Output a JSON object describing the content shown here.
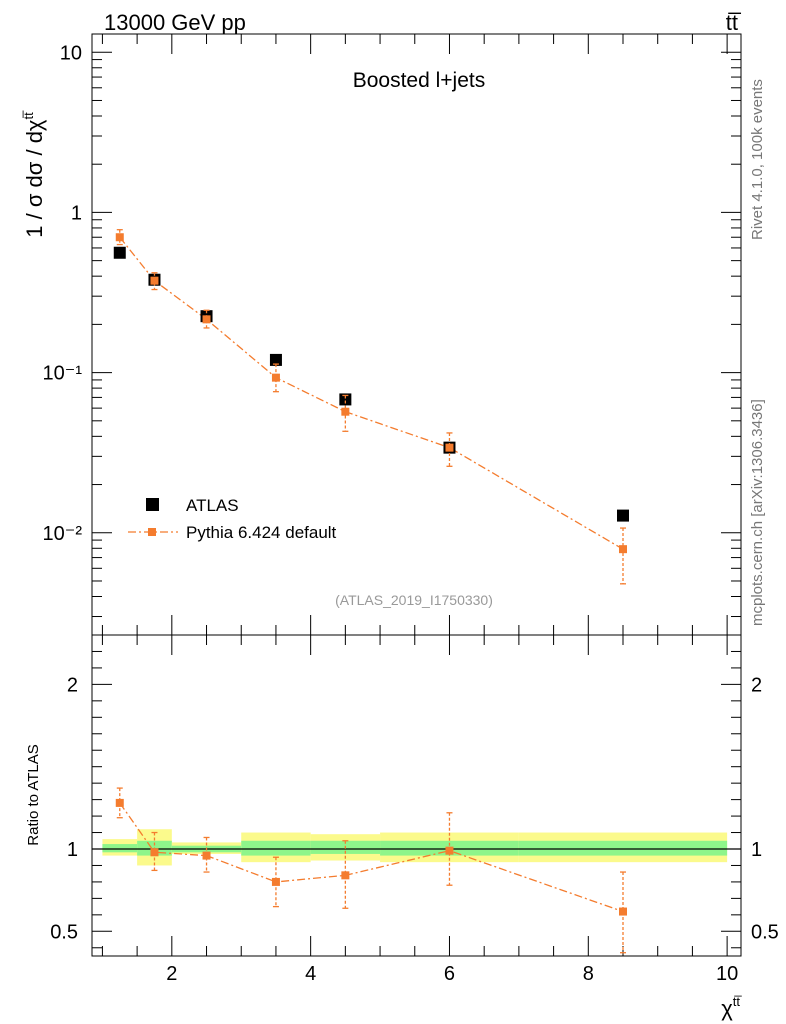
{
  "header": {
    "energy_label": "13000 GeV pp",
    "process_label": "tt̅"
  },
  "side_text": {
    "rivet_label": "Rivet 4.1.0,  100k events",
    "source_label": "mcplots.cern.ch [arXiv:1306.3436]"
  },
  "chart_data": [
    {
      "type": "scatter",
      "panel": "main",
      "title": "Boosted l+jets",
      "analysis_label": "(ATLAS_2019_I1750330)",
      "ylabel": "1 / σ dσ / dχ",
      "ylabel_superscript": "tt̅",
      "yscale": "log",
      "xlim": [
        0.85,
        10.2
      ],
      "ylim": [
        0.0023,
        13
      ],
      "ytick_labels": [
        "10⁻²",
        "10⁻¹",
        "1",
        "10"
      ],
      "legend_position": "lower-left",
      "series": [
        {
          "name": "ATLAS",
          "color": "#000000",
          "marker": "square",
          "x": [
            1.25,
            1.75,
            2.5,
            3.5,
            4.5,
            6.0,
            8.5
          ],
          "y": [
            0.56,
            0.38,
            0.225,
            0.12,
            0.068,
            0.034,
            0.0128
          ]
        },
        {
          "name": "Pythia 6.424 default",
          "color": "#f47c2e",
          "marker": "square-small",
          "line": "dash-dot",
          "x": [
            1.25,
            1.75,
            2.5,
            3.5,
            4.5,
            6.0,
            8.5
          ],
          "y": [
            0.7,
            0.375,
            0.215,
            0.093,
            0.057,
            0.034,
            0.0079
          ],
          "y_low": [
            0.63,
            0.33,
            0.19,
            0.076,
            0.043,
            0.026,
            0.0048
          ],
          "y_high": [
            0.78,
            0.42,
            0.245,
            0.113,
            0.072,
            0.042,
            0.0107
          ]
        }
      ]
    },
    {
      "type": "scatter",
      "panel": "ratio",
      "ylabel": "Ratio to ATLAS",
      "xlabel": "χ",
      "xlabel_superscript": "tt̅",
      "xlim": [
        0.85,
        10.2
      ],
      "ylim": [
        0.35,
        2.3
      ],
      "xtick_labels": [
        "2",
        "4",
        "6",
        "8",
        "10"
      ],
      "ytick_labels": [
        "0.5",
        "1",
        "2"
      ],
      "bands": [
        {
          "x_low": 1.0,
          "x_high": 1.5,
          "green_low": 0.98,
          "green_high": 1.03,
          "yellow_low": 0.96,
          "yellow_high": 1.06
        },
        {
          "x_low": 1.5,
          "x_high": 2.0,
          "green_low": 0.96,
          "green_high": 1.05,
          "yellow_low": 0.9,
          "yellow_high": 1.12
        },
        {
          "x_low": 2.0,
          "x_high": 3.0,
          "green_low": 0.98,
          "green_high": 1.02,
          "yellow_low": 0.97,
          "yellow_high": 1.04
        },
        {
          "x_low": 3.0,
          "x_high": 4.0,
          "green_low": 0.96,
          "green_high": 1.05,
          "yellow_low": 0.92,
          "yellow_high": 1.1
        },
        {
          "x_low": 4.0,
          "x_high": 5.0,
          "green_low": 0.97,
          "green_high": 1.05,
          "yellow_low": 0.93,
          "yellow_high": 1.09
        },
        {
          "x_low": 5.0,
          "x_high": 7.0,
          "green_low": 0.96,
          "green_high": 1.05,
          "yellow_low": 0.92,
          "yellow_high": 1.1
        },
        {
          "x_low": 7.0,
          "x_high": 10.0,
          "green_low": 0.96,
          "green_high": 1.05,
          "yellow_low": 0.92,
          "yellow_high": 1.1
        }
      ],
      "series": [
        {
          "name": "Pythia 6.424 default / ATLAS",
          "color": "#f47c2e",
          "x": [
            1.25,
            1.75,
            2.5,
            3.5,
            4.5,
            6.0,
            8.5
          ],
          "y": [
            1.28,
            0.98,
            0.96,
            0.8,
            0.84,
            0.99,
            0.62
          ],
          "y_low": [
            1.19,
            0.87,
            0.86,
            0.65,
            0.64,
            0.78,
            0.37
          ],
          "y_high": [
            1.37,
            1.1,
            1.07,
            0.95,
            1.05,
            1.22,
            0.86
          ]
        }
      ]
    }
  ]
}
